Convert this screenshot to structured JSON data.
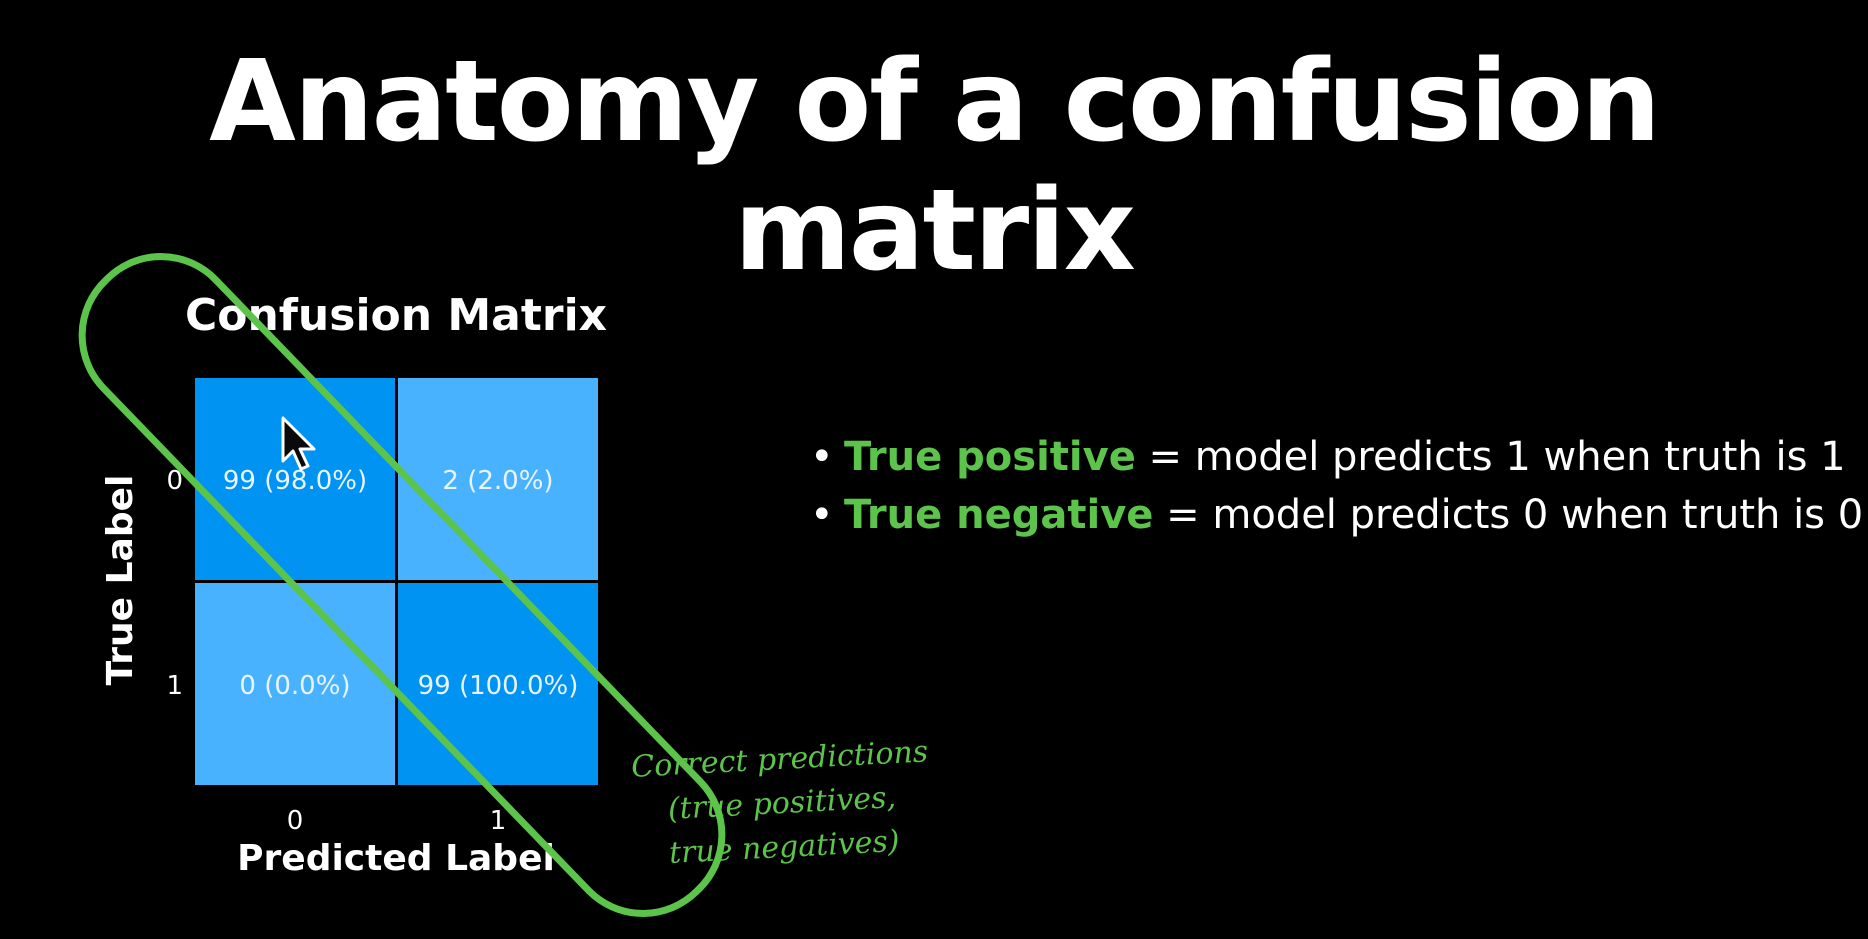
{
  "slide": {
    "title": "Anatomy of a confusion matrix"
  },
  "chart_data": {
    "type": "heatmap",
    "title": "Confusion Matrix",
    "xlabel": "Predicted Label",
    "ylabel": "True Label",
    "x_ticks": [
      "0",
      "1"
    ],
    "y_ticks": [
      "0",
      "1"
    ],
    "cells": [
      [
        {
          "count": 99,
          "label": "99 (98.0%)"
        },
        {
          "count": 2,
          "label": "2 (2.0%)"
        }
      ],
      [
        {
          "count": 0,
          "label": "0 (0.0%)"
        },
        {
          "count": 99,
          "label": "99 (100.0%)"
        }
      ]
    ],
    "grid": false,
    "colors": {
      "high": "#0093f2",
      "low": "#48b2ff",
      "cell_text": "#e8f4ff"
    }
  },
  "highlight": {
    "color": "#5cc44a",
    "note_lines": [
      "Correct predictions",
      "(true positives,",
      "true negatives)"
    ]
  },
  "bullets": [
    {
      "term": "True positive",
      "definition": " = model predicts 1 when truth is 1"
    },
    {
      "term": "True negative",
      "definition": " = model predicts 0 when truth is 0"
    }
  ],
  "colors": {
    "background": "#000000",
    "text": "#ffffff",
    "accent_green": "#5cc44a"
  }
}
